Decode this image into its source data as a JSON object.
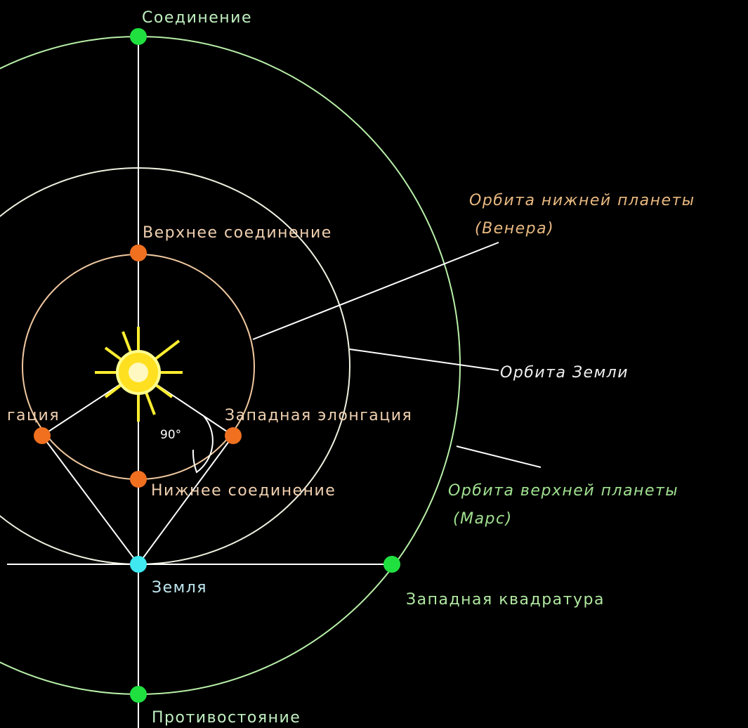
{
  "labels": {
    "conjunction": "Соединение",
    "superior_conjunction": "Верхнее соединение",
    "inferior_orbit_title": "Орбита нижней планеты",
    "inferior_orbit_planet": "(Венера)",
    "earth_orbit": "Орбита Земли",
    "eastern_elongation": "гация",
    "western_elongation": "Западная элонгация",
    "angle": "90°",
    "inferior_conjunction": "Нижнее соединение",
    "superior_orbit_title": "Орбита верхней планеты",
    "superior_orbit_planet": "(Марс)",
    "earth": "Земля",
    "western_quadrature": "Западная квадратура",
    "opposition": "Противостояние"
  }
}
